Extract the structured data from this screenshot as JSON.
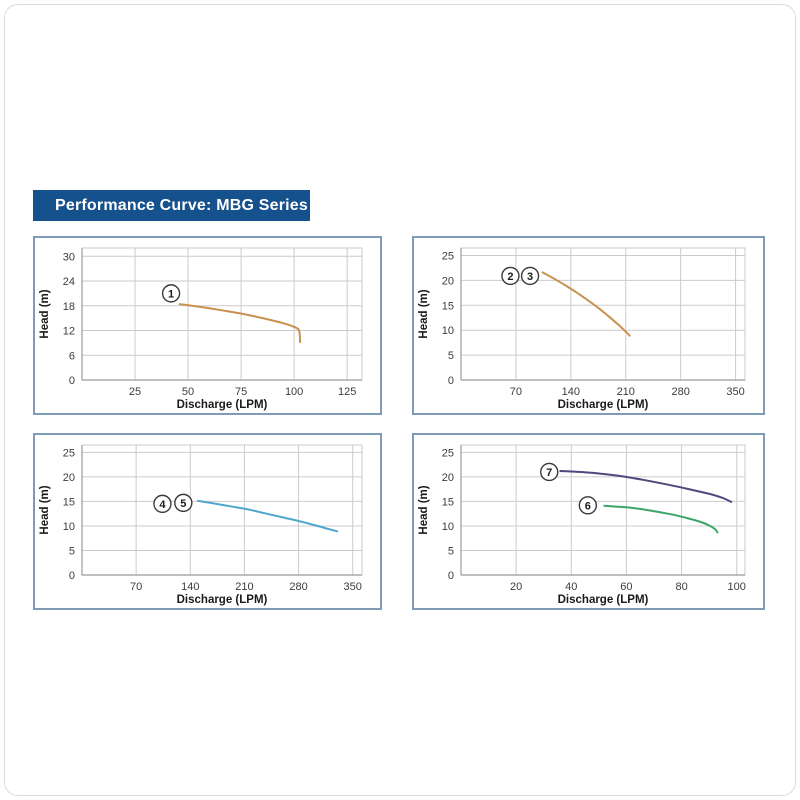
{
  "page": {
    "title": "Performance Curve: MBG Series",
    "colors": {
      "header_bg": "#15518C",
      "header_text": "#ffffff",
      "panel_border": "#7E9CB7",
      "grid": "#CBCBCB",
      "spine": "#9B9B9B",
      "tick_text": "#3C3C3C",
      "marker_stroke": "#3A3A3A",
      "curve_orange": "#C8914F",
      "curve_blue": "#4FA8CC",
      "curve_navy": "#4C4A7C",
      "curve_green": "#3CA46A"
    }
  },
  "chart_data": [
    {
      "type": "line",
      "position": "top-left",
      "xlabel": "Discharge (LPM)",
      "ylabel": "Head (m)",
      "x_ticks": [
        25,
        50,
        75,
        100,
        125
      ],
      "y_ticks": [
        0,
        6,
        12,
        18,
        24,
        30
      ],
      "xlim": [
        0,
        132
      ],
      "ylim": [
        0,
        32
      ],
      "grid": true,
      "series": [
        {
          "name": "1",
          "color": "#C8914F",
          "points": [
            [
              46,
              18.4
            ],
            [
              56,
              17.7
            ],
            [
              66,
              16.9
            ],
            [
              76,
              16.0
            ],
            [
              86,
              14.9
            ],
            [
              94,
              13.9
            ],
            [
              100,
              12.9
            ],
            [
              102,
              12.3
            ],
            [
              102.6,
              11.3
            ],
            [
              102.8,
              9.2
            ]
          ]
        }
      ],
      "markers": [
        {
          "label": "1",
          "x": 42,
          "y": 21.0
        }
      ]
    },
    {
      "type": "line",
      "position": "top-right",
      "xlabel": "Discharge (LPM)",
      "ylabel": "Head (m)",
      "x_ticks": [
        70,
        140,
        210,
        280,
        350
      ],
      "y_ticks": [
        0,
        5,
        10,
        15,
        20,
        25
      ],
      "xlim": [
        0,
        362
      ],
      "ylim": [
        0,
        26.5
      ],
      "grid": true,
      "series": [
        {
          "name": "2-3",
          "color": "#C8914F",
          "points": [
            [
              104,
              21.6
            ],
            [
              118,
              20.4
            ],
            [
              132,
              19.1
            ],
            [
              146,
              17.7
            ],
            [
              160,
              16.2
            ],
            [
              174,
              14.6
            ],
            [
              188,
              12.8
            ],
            [
              202,
              10.9
            ],
            [
              212,
              9.4
            ],
            [
              215,
              8.9
            ]
          ]
        }
      ],
      "markers": [
        {
          "label": "2",
          "x": 63,
          "y": 20.9
        },
        {
          "label": "3",
          "x": 88,
          "y": 20.9
        }
      ]
    },
    {
      "type": "line",
      "position": "bottom-left",
      "xlabel": "Discharge (LPM)",
      "ylabel": "Head (m)",
      "x_ticks": [
        70,
        140,
        210,
        280,
        350
      ],
      "y_ticks": [
        0,
        5,
        10,
        15,
        20,
        25
      ],
      "xlim": [
        0,
        362
      ],
      "ylim": [
        0,
        26.5
      ],
      "grid": true,
      "series": [
        {
          "name": "4-5",
          "color": "#4FA8CC",
          "points": [
            [
              150,
              15.1
            ],
            [
              170,
              14.6
            ],
            [
              192,
              14.0
            ],
            [
              214,
              13.4
            ],
            [
              236,
              12.6
            ],
            [
              258,
              11.8
            ],
            [
              280,
              11.0
            ],
            [
              300,
              10.2
            ],
            [
              318,
              9.4
            ],
            [
              330,
              8.9
            ]
          ]
        }
      ],
      "markers": [
        {
          "label": "4",
          "x": 104,
          "y": 14.5
        },
        {
          "label": "5",
          "x": 131,
          "y": 14.7
        }
      ]
    },
    {
      "type": "line",
      "position": "bottom-right",
      "xlabel": "Discharge (LPM)",
      "ylabel": "Head (m)",
      "x_ticks": [
        20,
        40,
        60,
        80,
        100
      ],
      "y_ticks": [
        0,
        5,
        10,
        15,
        20,
        25
      ],
      "xlim": [
        0,
        103
      ],
      "ylim": [
        0,
        26.5
      ],
      "grid": true,
      "series": [
        {
          "name": "7",
          "color": "#4C4A7C",
          "points": [
            [
              36,
              21.2
            ],
            [
              46,
              20.9
            ],
            [
              56,
              20.3
            ],
            [
              66,
              19.4
            ],
            [
              76,
              18.3
            ],
            [
              85,
              17.2
            ],
            [
              91,
              16.4
            ],
            [
              95,
              15.7
            ],
            [
              98,
              14.9
            ]
          ]
        },
        {
          "name": "6",
          "color": "#3CA46A",
          "points": [
            [
              52,
              14.1
            ],
            [
              60,
              13.8
            ],
            [
              68,
              13.2
            ],
            [
              76,
              12.4
            ],
            [
              82,
              11.6
            ],
            [
              87,
              10.8
            ],
            [
              90,
              10.1
            ],
            [
              92,
              9.4
            ],
            [
              93,
              8.7
            ]
          ]
        }
      ],
      "markers": [
        {
          "label": "7",
          "x": 32,
          "y": 21.0
        },
        {
          "label": "6",
          "x": 46,
          "y": 14.2
        }
      ]
    }
  ]
}
